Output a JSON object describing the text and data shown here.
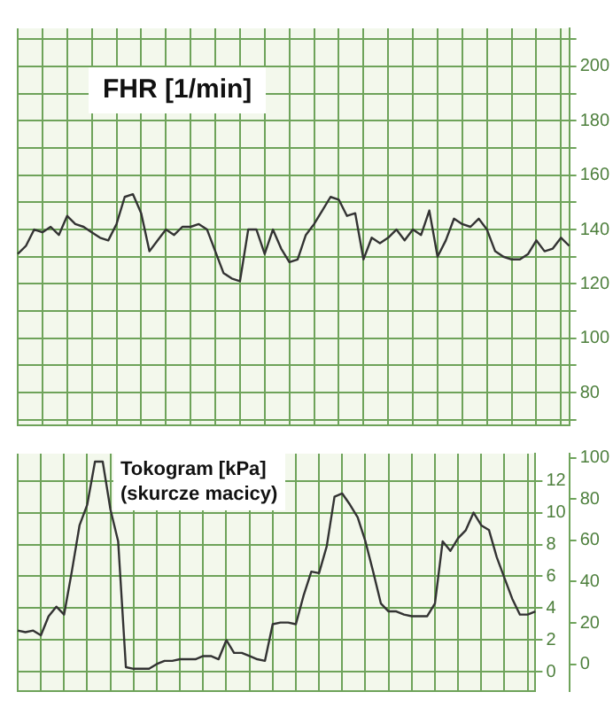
{
  "chart_data": [
    {
      "type": "line",
      "title": "FHR [1/min]",
      "categories": [
        null,
        null,
        null,
        null,
        null,
        null,
        null,
        null,
        null,
        null,
        null,
        null,
        null,
        null,
        null,
        null,
        null,
        null,
        null,
        null,
        null,
        null,
        null,
        null,
        null,
        null,
        null,
        null,
        null,
        null,
        null,
        null,
        null,
        null,
        null,
        null,
        null,
        null,
        null,
        null,
        null,
        null,
        null,
        null,
        null,
        null,
        null,
        null,
        null,
        null,
        null,
        null,
        null,
        null,
        null,
        null,
        null,
        null,
        null,
        null,
        null,
        null,
        null,
        null,
        null,
        null,
        null,
        null
      ],
      "series": [
        {
          "color": "#333333",
          "values": [
            131,
            134,
            140,
            139,
            141,
            138,
            145,
            142,
            141,
            139,
            137,
            136,
            142,
            152,
            153,
            146,
            132,
            136,
            140,
            138,
            141,
            141,
            142,
            140,
            132,
            124,
            122,
            121,
            140,
            140,
            131,
            140,
            133,
            128,
            129,
            138,
            142,
            147,
            152,
            151,
            145,
            146,
            129,
            137,
            135,
            137,
            140,
            136,
            140,
            138,
            147,
            130,
            136,
            144,
            142,
            141,
            144,
            140,
            132,
            130,
            129,
            129,
            131,
            136,
            132,
            133,
            137,
            134
          ]
        }
      ],
      "ylim": [
        68,
        214
      ],
      "yticks": [
        {
          "value": 70,
          "label": null
        },
        80,
        {
          "value": 90,
          "label": null
        },
        100,
        {
          "value": 110,
          "label": null
        },
        120,
        {
          "value": 130,
          "label": null
        },
        140,
        {
          "value": 150,
          "label": null
        },
        160,
        {
          "value": 170,
          "label": null
        },
        180,
        {
          "value": 190,
          "label": null
        },
        200,
        {
          "value": 210,
          "label": null
        }
      ],
      "grid": true,
      "tick_labels": "y"
    },
    {
      "type": "line",
      "title": "Tokogram [kPa]\n(skurcze macicy)",
      "categories": [
        null,
        null,
        null,
        null,
        null,
        null,
        null,
        null,
        null,
        null,
        null,
        null,
        null,
        null,
        null,
        null,
        null,
        null,
        null,
        null,
        null,
        null,
        null,
        null,
        null,
        null,
        null,
        null,
        null,
        null,
        null,
        null,
        null,
        null,
        null,
        null,
        null,
        null,
        null,
        null,
        null,
        null,
        null,
        null,
        null,
        null,
        null,
        null,
        null,
        null,
        null,
        null,
        null,
        null,
        null,
        null,
        null,
        null,
        null,
        null,
        null,
        null,
        null,
        null,
        null,
        null,
        null,
        null
      ],
      "series": [
        {
          "color": "#333333",
          "axis": "y",
          "values": [
            2.6,
            2.5,
            2.6,
            2.3,
            3.5,
            4.1,
            3.6,
            6.3,
            9.2,
            10.5,
            13.2,
            13.2,
            10.2,
            8.2,
            0.3,
            0.2,
            0.2,
            0.2,
            0.5,
            0.7,
            0.7,
            0.8,
            0.8,
            0.8,
            1.0,
            1.0,
            0.8,
            2.0,
            1.2,
            1.2,
            1.0,
            0.8,
            0.7,
            3.0,
            3.1,
            3.1,
            3.0,
            4.8,
            6.3,
            6.2,
            7.9,
            11.0,
            11.2,
            10.5,
            9.7,
            8.2,
            6.3,
            4.3,
            3.8,
            3.8,
            3.6,
            3.5,
            3.5,
            3.5,
            4.3,
            8.2,
            7.6,
            8.4,
            8.9,
            10.0,
            9.2,
            8.9,
            7.2,
            5.9,
            4.6,
            3.6,
            3.6,
            3.8
          ]
        }
      ],
      "ylim": [
        -1.2,
        13.7
      ],
      "yticks": [
        0,
        2,
        4,
        6,
        8,
        10,
        12
      ],
      "y2lim": [
        -13,
        102
      ],
      "y2ticks": [
        0,
        20,
        40,
        60,
        80,
        100
      ],
      "grid": true,
      "tick_labels": "y"
    }
  ]
}
